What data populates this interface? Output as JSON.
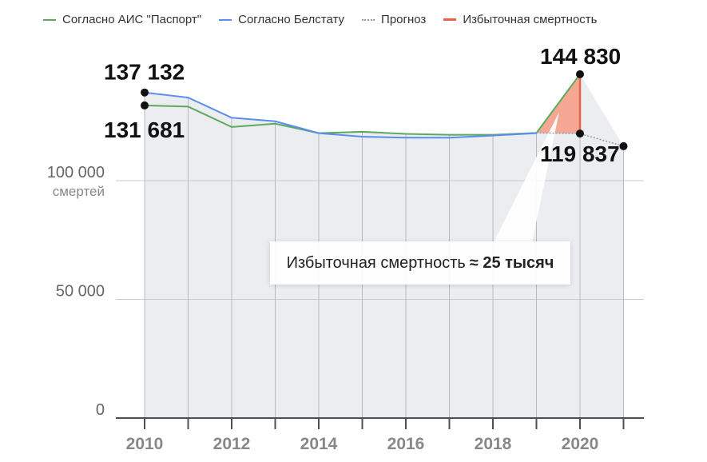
{
  "legend": [
    {
      "label": "Согласно АИС \"Паспорт\"",
      "color": "#5daa5d",
      "style": "solid"
    },
    {
      "label": "Согласно Белстату",
      "color": "#5b8def",
      "style": "solid"
    },
    {
      "label": "Прогноз",
      "color": "#8aa0b0",
      "style": "dotted"
    },
    {
      "label": "Избыточная смертность",
      "color": "#e8634a",
      "style": "solid"
    }
  ],
  "annotation": {
    "text": "Избыточная смертность",
    "value": "≈ 25 тысяч"
  },
  "callouts": [
    {
      "text": "137 132",
      "x": 2010,
      "y": 137132
    },
    {
      "text": "131 681",
      "x": 2010,
      "y": 131681
    },
    {
      "text": "144 830",
      "x": 2020,
      "y": 144830
    },
    {
      "text": "119 837",
      "x": 2020,
      "y": 119837
    }
  ],
  "chart_data": {
    "type": "line",
    "x": [
      2010,
      2011,
      2012,
      2013,
      2014,
      2015,
      2016,
      2017,
      2018,
      2019,
      2020,
      2021
    ],
    "series": [
      {
        "name": "Согласно АИС \"Паспорт\"",
        "color": "#5daa5d",
        "values": [
          131681,
          131200,
          122600,
          124000,
          120000,
          120600,
          119700,
          119300,
          119300,
          120100,
          144830,
          null
        ]
      },
      {
        "name": "Согласно Белстату",
        "color": "#5b8def",
        "values": [
          137132,
          135000,
          126500,
          125000,
          120000,
          118500,
          118100,
          118100,
          119000,
          120000,
          null,
          null
        ]
      },
      {
        "name": "Прогноз",
        "color": "#8aa0b0",
        "style": "dotted",
        "values": [
          null,
          null,
          null,
          null,
          null,
          null,
          null,
          null,
          null,
          120100,
          119837,
          114500
        ]
      }
    ],
    "excess": {
      "name": "Избыточная смертность",
      "color": "#e8634a",
      "x": 2020,
      "from": 119837,
      "to": 144830
    },
    "yticks": [
      0,
      50000,
      100000
    ],
    "ytick_labels": [
      "0",
      "50 000",
      "100 000"
    ],
    "yunit": "смертей",
    "xticks": [
      2010,
      2012,
      2014,
      2016,
      2018,
      2020
    ],
    "xlim": [
      2009.3,
      2021.5
    ],
    "ylim": [
      0,
      165000
    ],
    "grid": true,
    "legend_position": "top-left"
  }
}
